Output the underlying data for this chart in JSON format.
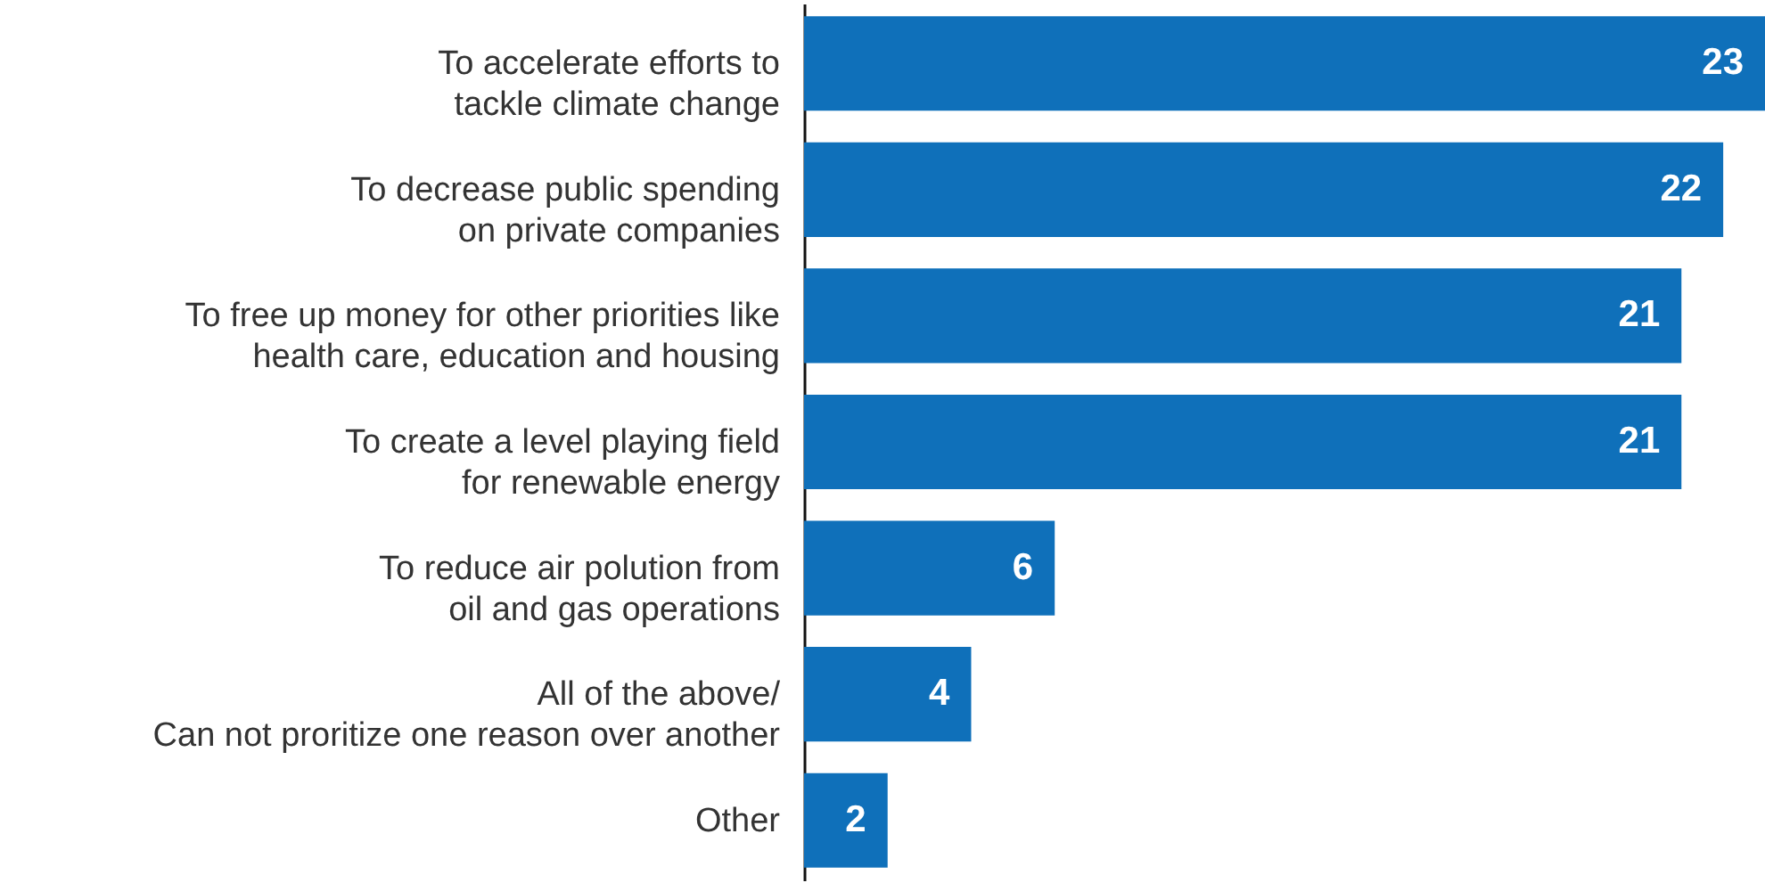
{
  "chart_data": {
    "type": "bar",
    "orientation": "horizontal",
    "data_labels": true,
    "categories": [
      "To accelerate efforts to\ntackle climate change",
      "To decrease public spending\non private companies",
      "To free up money for other priorities like\nhealth care, education and housing",
      "To create a level playing field\nfor renewable energy",
      "To reduce air polution from\noil and gas operations",
      "All of the above/\nCan not proritize one reason over another",
      "Other"
    ],
    "values": [
      23,
      22,
      21,
      21,
      6,
      4,
      2
    ],
    "color": "#0f70ba"
  }
}
